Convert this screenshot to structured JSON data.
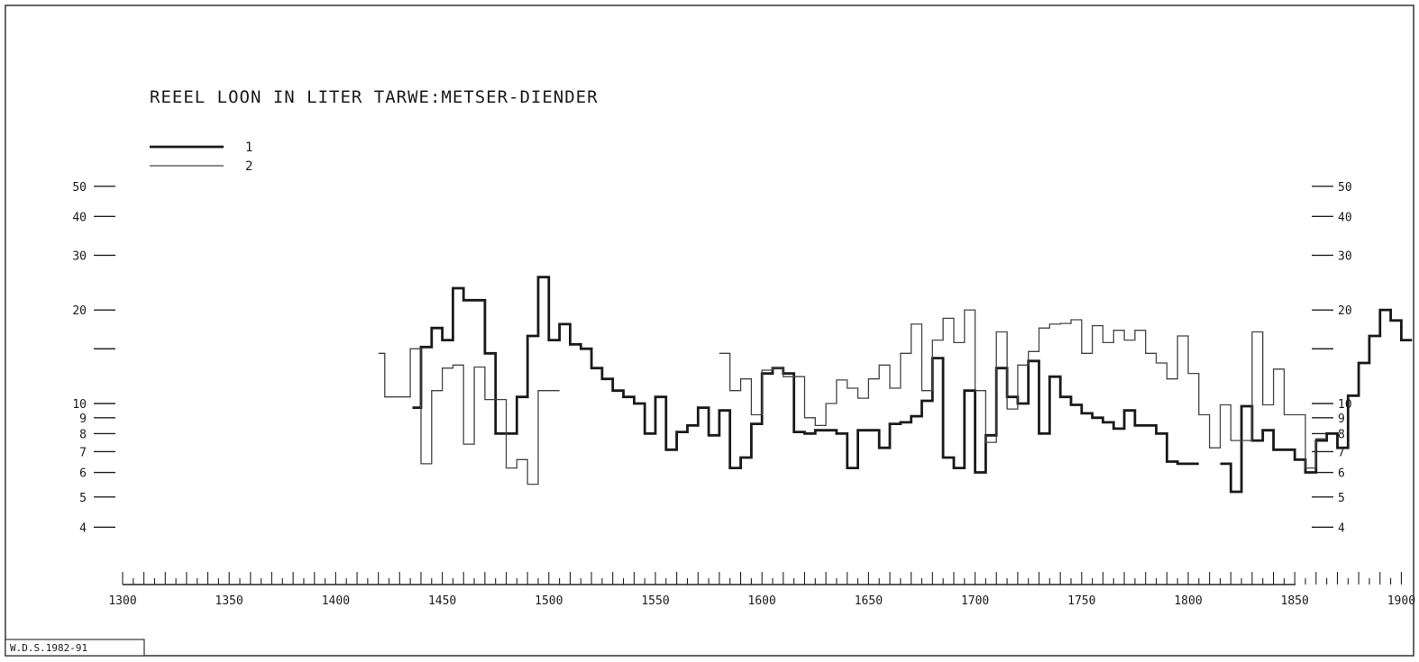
{
  "chart_data": {
    "type": "line",
    "title": "REEEL LOON IN LITER TARWE:METSER-DIENDER",
    "xlabel": "",
    "ylabel": "",
    "y_scale": "log",
    "xlim": [
      1300,
      1905
    ],
    "ylim": [
      4,
      50
    ],
    "x_ticks": [
      1300,
      1350,
      1400,
      1450,
      1500,
      1550,
      1600,
      1650,
      1700,
      1750,
      1800,
      1850,
      1900
    ],
    "y_ticks": [
      {
        "value": 50,
        "label": "50"
      },
      {
        "value": 40,
        "label": "40"
      },
      {
        "value": 30,
        "label": "30"
      },
      {
        "value": 20,
        "label": "20"
      },
      {
        "value": 15,
        "label": ""
      },
      {
        "value": 10,
        "label": "10"
      },
      {
        "value": 9,
        "label": "9"
      },
      {
        "value": 8,
        "label": "8"
      },
      {
        "value": 7,
        "label": "7"
      },
      {
        "value": 6,
        "label": "6"
      },
      {
        "value": 5,
        "label": "5"
      },
      {
        "value": 4,
        "label": "4"
      }
    ],
    "grid": false,
    "legend": {
      "position": "top-left"
    },
    "series": [
      {
        "name": "1",
        "style": "thick",
        "color": "#1a1a1a",
        "segments": [
          {
            "x": [
              1436,
              1440,
              1445,
              1450,
              1455,
              1460,
              1465,
              1470,
              1475,
              1480,
              1485,
              1490,
              1495,
              1500,
              1505,
              1510,
              1515,
              1520,
              1525,
              1530,
              1535,
              1540,
              1545,
              1550,
              1555,
              1560,
              1565,
              1570,
              1575,
              1580,
              1585,
              1590,
              1595,
              1600,
              1605,
              1610,
              1615,
              1620,
              1625,
              1630,
              1635,
              1640,
              1645,
              1650,
              1655,
              1660,
              1665,
              1670,
              1675,
              1680,
              1685,
              1690,
              1695,
              1700,
              1705,
              1710,
              1715,
              1720,
              1725,
              1730,
              1735,
              1740,
              1745,
              1750,
              1755,
              1760,
              1765,
              1770,
              1775,
              1780,
              1785,
              1790,
              1795,
              1800
            ],
            "y": [
              9.7,
              15.2,
              17.5,
              16,
              23.5,
              21.5,
              21.5,
              14.5,
              8,
              8,
              10.5,
              16.5,
              25.5,
              16,
              18,
              15.5,
              15,
              13,
              12,
              11,
              10.5,
              10,
              8,
              10.5,
              7.1,
              8.1,
              8.5,
              9.7,
              7.9,
              9.5,
              6.2,
              6.7,
              8.6,
              12.5,
              13,
              12.5,
              8.1,
              8,
              8.2,
              8.2,
              8,
              6.2,
              8.2,
              8.2,
              7.2,
              8.6,
              8.7,
              9.1,
              10.2,
              14,
              6.7,
              6.2,
              11,
              6,
              7.9,
              13,
              10.5,
              10,
              13.7,
              8,
              12.2,
              10.5,
              9.9,
              9.3,
              9,
              8.7,
              8.3,
              9.5,
              8.5,
              8.5,
              8,
              6.5,
              6.4,
              6.4
            ]
          },
          {
            "x": [
              1815,
              1820,
              1825,
              1830,
              1835,
              1840,
              1845,
              1850,
              1855,
              1860,
              1865,
              1870,
              1875,
              1880,
              1885,
              1890,
              1895,
              1900
            ],
            "y": [
              6.4,
              5.2,
              9.8,
              7.6,
              8.2,
              7.1,
              7.1,
              6.6,
              6,
              7.6,
              8,
              7.2,
              10.6,
              13.5,
              16.5,
              20,
              18.5,
              16
            ]
          }
        ]
      },
      {
        "name": "2",
        "style": "thin",
        "color": "#444444",
        "segments": [
          {
            "x": [
              1420,
              1423,
              1430,
              1435,
              1440,
              1445,
              1450,
              1455,
              1460,
              1465,
              1470,
              1475,
              1480,
              1485,
              1490,
              1495,
              1500
            ],
            "y": [
              14.5,
              10.5,
              10.5,
              15,
              6.4,
              11,
              13,
              13.3,
              7.4,
              13.1,
              10.3,
              10.3,
              6.2,
              6.6,
              5.5,
              11,
              11
            ]
          },
          {
            "x": [
              1580,
              1585,
              1590,
              1595,
              1600,
              1605,
              1610,
              1615,
              1620,
              1625,
              1630,
              1635,
              1640,
              1645,
              1650,
              1655,
              1660,
              1665,
              1670,
              1675,
              1680,
              1685,
              1690,
              1695,
              1700,
              1705,
              1710,
              1715,
              1720,
              1725,
              1730,
              1735,
              1740,
              1745,
              1750,
              1755,
              1760,
              1765,
              1770,
              1775,
              1780,
              1785,
              1790,
              1795,
              1800,
              1805,
              1810,
              1815,
              1820,
              1825,
              1830,
              1835,
              1840,
              1845,
              1850,
              1855,
              1860
            ],
            "y": [
              14.5,
              11,
              12,
              9.2,
              12.8,
              13,
              12.2,
              12.2,
              9,
              8.5,
              10,
              11.9,
              11.2,
              10.4,
              12,
              13.3,
              11.2,
              14.5,
              18,
              11,
              16,
              18.8,
              15.7,
              20,
              11,
              7.5,
              17,
              9.6,
              13.3,
              14.7,
              17.5,
              18,
              18.1,
              18.6,
              14.5,
              17.8,
              15.7,
              17.2,
              16,
              17.2,
              14.5,
              13.5,
              12,
              16.5,
              12.5,
              9.2,
              7.2,
              9.9,
              7.6,
              7.6,
              17,
              9.9,
              12.9,
              9.2,
              9.2,
              6.2,
              7.7
            ]
          }
        ]
      }
    ]
  },
  "credit": "W.D.S.1982-91"
}
